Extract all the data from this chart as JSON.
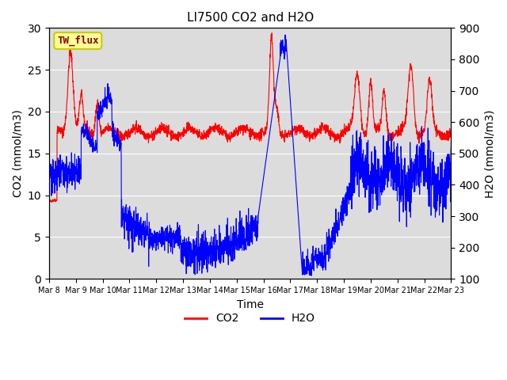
{
  "title": "LI7500 CO2 and H2O",
  "xlabel": "Time",
  "ylabel_left": "CO2 (mmol/m3)",
  "ylabel_right": "H2O (mmol/m3)",
  "ylim_left": [
    0,
    30
  ],
  "ylim_right": [
    100,
    900
  ],
  "x_tick_labels": [
    "Mar 8",
    "Mar 9",
    "Mar 10",
    "Mar 11",
    "Mar 12",
    "Mar 13",
    "Mar 14",
    "Mar 15",
    "Mar 16",
    "Mar 17",
    "Mar 18",
    "Mar 19",
    "Mar 20",
    "Mar 21",
    "Mar 22",
    "Mar 23"
  ],
  "color_co2": "#FF0000",
  "color_h2o": "#0000FF",
  "background_color": "#DCDCDC",
  "legend_label_co2": "CO2",
  "legend_label_h2o": "H2O",
  "annotation_text": "TW_flux",
  "annotation_bg": "#FFFF99",
  "annotation_border": "#CCCC00"
}
